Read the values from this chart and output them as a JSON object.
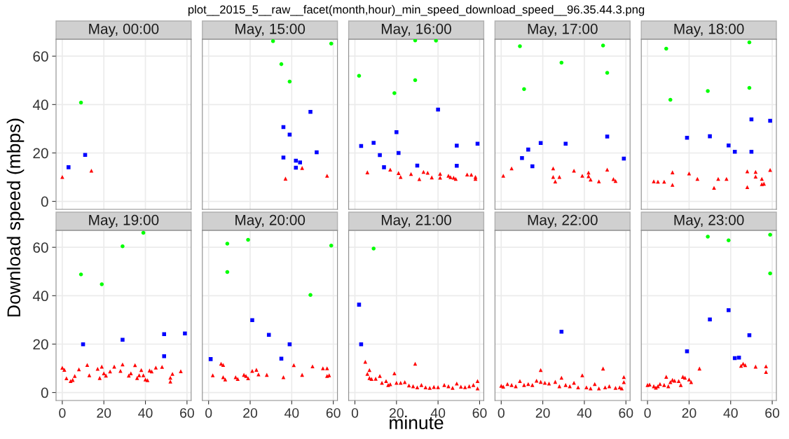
{
  "chart_data": [
    {
      "type": "scatter",
      "title": "May, 00:00",
      "annotations": [
        "plot__2015_5__raw__facet(month,hour)_min_speed_download_speed__96.35.44.3.png"
      ],
      "ylabel": "Download speed (mbps)",
      "xlim": [
        -3,
        62
      ],
      "ylim": [
        -3.3,
        67
      ],
      "xticks": [
        0,
        20,
        40,
        60
      ],
      "yticks": [
        0,
        20,
        40,
        60
      ],
      "grid": true,
      "tick_labels": "y",
      "series": [
        {
          "color": "#00ff00",
          "marker": "circle",
          "x": [
            9
          ],
          "values": [
            40.8
          ]
        },
        {
          "color": "#0000ff",
          "marker": "square",
          "x": [
            3,
            11
          ],
          "values": [
            14.1,
            19.2
          ]
        },
        {
          "color": "#ff0000",
          "marker": "triangle",
          "x": [
            0,
            14
          ],
          "values": [
            10.1,
            12.7
          ]
        }
      ]
    },
    {
      "type": "scatter",
      "title": "May, 15:00",
      "xlim": [
        -3,
        62
      ],
      "ylim": [
        -3.3,
        67
      ],
      "xticks": [
        0,
        20,
        40,
        60
      ],
      "yticks": [
        0,
        20,
        40,
        60
      ],
      "grid": true,
      "tick_labels": false,
      "series": [
        {
          "color": "#00ff00",
          "marker": "circle",
          "x": [
            31,
            59,
            35,
            39
          ],
          "values": [
            66.2,
            65.2,
            56.7,
            49.5
          ]
        },
        {
          "color": "#0000ff",
          "marker": "square",
          "x": [
            49,
            36,
            39,
            52,
            36,
            42,
            44,
            42
          ],
          "values": [
            37,
            30.7,
            27.6,
            20.3,
            18.1,
            16.8,
            16.1,
            13.9
          ]
        },
        {
          "color": "#ff0000",
          "marker": "triangle",
          "x": [
            45,
            37,
            57
          ],
          "values": [
            13.8,
            9.4,
            10.6
          ]
        }
      ]
    },
    {
      "type": "scatter",
      "title": "May, 16:00",
      "xlim": [
        -3,
        62
      ],
      "ylim": [
        -3.3,
        67
      ],
      "xticks": [
        0,
        20,
        40,
        60
      ],
      "yticks": [
        0,
        20,
        40,
        60
      ],
      "grid": true,
      "tick_labels": false,
      "series": [
        {
          "color": "#00ff00",
          "marker": "circle",
          "x": [
            2,
            29,
            39,
            29,
            19
          ],
          "values": [
            51.9,
            66.5,
            66.4,
            50.1,
            44.7
          ]
        },
        {
          "color": "#0000ff",
          "marker": "square",
          "x": [
            3,
            9,
            12,
            20,
            21,
            14,
            30,
            40,
            49,
            49,
            59
          ],
          "values": [
            22.9,
            24.2,
            19.1,
            28.6,
            20,
            14.1,
            14.8,
            37.9,
            23,
            14.7,
            23.8
          ]
        },
        {
          "color": "#ff0000",
          "marker": "triangle",
          "x": [
            6,
            17,
            21,
            22,
            27,
            31,
            33,
            35,
            37,
            41,
            41,
            45,
            46,
            47.5,
            48.5,
            54,
            56,
            58,
            58
          ],
          "values": [
            12,
            13.1,
            11.7,
            10.1,
            11.3,
            9.2,
            12.2,
            11.8,
            9.9,
            11.4,
            9.8,
            10.6,
            10,
            9.8,
            9.3,
            11.1,
            11,
            10.1,
            9.3
          ]
        }
      ]
    },
    {
      "type": "scatter",
      "title": "May, 17:00",
      "xlim": [
        -3,
        62
      ],
      "ylim": [
        -3.3,
        67
      ],
      "xticks": [
        0,
        20,
        40,
        60
      ],
      "yticks": [
        0,
        20,
        40,
        60
      ],
      "grid": true,
      "tick_labels": false,
      "series": [
        {
          "color": "#00ff00",
          "marker": "circle",
          "x": [
            9,
            49,
            29,
            51,
            11
          ],
          "values": [
            64.1,
            64.4,
            57.3,
            53.1,
            46.4
          ]
        },
        {
          "color": "#0000ff",
          "marker": "square",
          "x": [
            10,
            13,
            15,
            19,
            31,
            51,
            59
          ],
          "values": [
            17.9,
            21.4,
            14.5,
            24.1,
            23.8,
            26.8,
            17.7
          ]
        },
        {
          "color": "#ff0000",
          "marker": "triangle",
          "x": [
            1,
            5,
            25,
            25,
            26,
            28,
            35,
            39,
            42,
            42,
            43,
            47,
            51,
            54,
            55
          ],
          "values": [
            10.6,
            13.6,
            13.6,
            10.1,
            8.2,
            10.1,
            12.7,
            10.6,
            11.9,
            10.4,
            9,
            8.3,
            13.1,
            9.2,
            8.4
          ]
        }
      ]
    },
    {
      "type": "scatter",
      "title": "May, 18:00",
      "xlim": [
        -3,
        62
      ],
      "ylim": [
        -3.3,
        67
      ],
      "xticks": [
        0,
        20,
        40,
        60
      ],
      "yticks": [
        0,
        20,
        40,
        60
      ],
      "grid": true,
      "tick_labels": false,
      "series": [
        {
          "color": "#00ff00",
          "marker": "circle",
          "x": [
            9,
            49,
            11,
            29,
            49
          ],
          "values": [
            63.1,
            65.7,
            42,
            45.6,
            46.9
          ]
        },
        {
          "color": "#0000ff",
          "marker": "square",
          "x": [
            19,
            30,
            39,
            42,
            50,
            50,
            59
          ],
          "values": [
            26.3,
            26.9,
            23.1,
            20.5,
            33.9,
            20.5,
            33.3
          ]
        },
        {
          "color": "#ff0000",
          "marker": "triangle",
          "x": [
            3,
            5,
            8,
            12,
            12,
            20,
            24,
            32,
            34,
            38,
            48,
            48,
            52,
            52,
            55,
            55,
            56,
            59
          ],
          "values": [
            8.3,
            8.1,
            8.1,
            12,
            6.8,
            11.5,
            9.3,
            5.6,
            9.3,
            9.3,
            12.4,
            5.9,
            12.2,
            10.2,
            9.3,
            7.1,
            7.3,
            13
          ]
        }
      ]
    },
    {
      "type": "scatter",
      "title": "May, 19:00",
      "xlim": [
        -3,
        62
      ],
      "ylim": [
        -3.3,
        67
      ],
      "xticks": [
        0,
        20,
        40,
        60
      ],
      "yticks": [
        0,
        20,
        40,
        60
      ],
      "grid": true,
      "series": [
        {
          "color": "#00ff00",
          "marker": "circle",
          "x": [
            39,
            29,
            9,
            19
          ],
          "values": [
            66,
            60.4,
            48.8,
            44.7
          ]
        },
        {
          "color": "#0000ff",
          "marker": "square",
          "x": [
            10,
            29,
            49,
            49,
            59
          ],
          "values": [
            19.9,
            21.8,
            24.1,
            15,
            24.4
          ]
        },
        {
          "color": "#ff0000",
          "marker": "triangle",
          "x": [
            0,
            1,
            2,
            4,
            5,
            6,
            8,
            12,
            13,
            17,
            19,
            18,
            20,
            21,
            23,
            25,
            28,
            29,
            32,
            33,
            35,
            36,
            37,
            38,
            39,
            40,
            41,
            42,
            43,
            45,
            48,
            52,
            52,
            53,
            57
          ],
          "values": [
            10.2,
            9.4,
            5.9,
            4.7,
            5.2,
            6.8,
            9.6,
            11.4,
            7.1,
            9.8,
            10.7,
            6,
            7.9,
            7,
            8.7,
            10.7,
            8.9,
            11.6,
            7,
            7.9,
            11.3,
            6,
            7.1,
            9.3,
            7.1,
            5.4,
            5.1,
            9.1,
            8.7,
            10.3,
            10.6,
            6.1,
            4.5,
            7.7,
            8.8
          ]
        }
      ]
    },
    {
      "type": "scatter",
      "title": "May, 20:00",
      "xlim": [
        -3,
        62
      ],
      "ylim": [
        -3.3,
        67
      ],
      "xticks": [
        0,
        20,
        40,
        60
      ],
      "yticks": [
        0,
        20,
        40,
        60
      ],
      "grid": true,
      "tick_labels": "x",
      "series": [
        {
          "color": "#00ff00",
          "marker": "circle",
          "x": [
            9,
            9,
            19,
            49,
            59
          ],
          "values": [
            61.5,
            49.8,
            63.1,
            40.3,
            60.7
          ]
        },
        {
          "color": "#0000ff",
          "marker": "square",
          "x": [
            1,
            21,
            29,
            35,
            39
          ],
          "values": [
            13.8,
            29.9,
            23.8,
            14,
            19.9
          ]
        },
        {
          "color": "#ff0000",
          "marker": "triangle",
          "x": [
            2,
            6,
            7,
            7,
            8,
            13,
            14,
            17,
            18,
            19,
            21,
            23,
            24,
            28,
            36,
            41,
            45,
            50,
            55,
            57,
            57,
            58
          ],
          "values": [
            7.1,
            11.9,
            11.4,
            6.3,
            5.4,
            6.3,
            5.6,
            7.3,
            6.8,
            5.9,
            8.9,
            9.4,
            7.5,
            7.3,
            6.3,
            11.3,
            7.3,
            10.8,
            10,
            10,
            6.8,
            7.1
          ]
        }
      ]
    },
    {
      "type": "scatter",
      "title": "May, 21:00",
      "xlabel": "minute",
      "xlim": [
        -3,
        62
      ],
      "ylim": [
        -3.3,
        67
      ],
      "xticks": [
        0,
        20,
        40,
        60
      ],
      "yticks": [
        0,
        20,
        40,
        60
      ],
      "grid": true,
      "tick_labels": "x",
      "series": [
        {
          "color": "#00ff00",
          "marker": "circle",
          "x": [
            9
          ],
          "values": [
            59.5
          ]
        },
        {
          "color": "#0000ff",
          "marker": "square",
          "x": [
            2,
            3
          ],
          "values": [
            36.3,
            19.9
          ]
        },
        {
          "color": "#ff0000",
          "marker": "triangle",
          "x": [
            5,
            7,
            6,
            7,
            8,
            10,
            12,
            13,
            15,
            16,
            17,
            19,
            20,
            22,
            24,
            26,
            28,
            29,
            30,
            32,
            34,
            36,
            38,
            40,
            43,
            45,
            47,
            49,
            51,
            53,
            55,
            57,
            59,
            59
          ],
          "values": [
            12.7,
            9.3,
            7.7,
            6,
            5.6,
            5.7,
            6.8,
            4,
            4.7,
            3.1,
            3.4,
            7.9,
            4,
            4,
            4.3,
            2.9,
            2.6,
            11.9,
            2.1,
            3.1,
            2.1,
            1.9,
            2.3,
            2.2,
            3.1,
            2.6,
            1.9,
            3.7,
            2.4,
            2.2,
            2.6,
            3.1,
            1.7,
            4.7
          ]
        }
      ]
    },
    {
      "type": "scatter",
      "title": "May, 22:00",
      "xlim": [
        -3,
        62
      ],
      "ylim": [
        -3.3,
        67
      ],
      "xticks": [
        0,
        20,
        40,
        60
      ],
      "yticks": [
        0,
        20,
        40,
        60
      ],
      "grid": true,
      "tick_labels": "x",
      "series": [
        {
          "color": "#0000ff",
          "marker": "square",
          "x": [
            29
          ],
          "values": [
            25.1
          ]
        },
        {
          "color": "#ff0000",
          "marker": "triangle",
          "x": [
            0,
            1,
            3,
            5,
            7,
            9,
            11,
            13,
            15,
            17,
            19,
            19,
            21,
            23,
            26,
            28,
            29,
            31,
            33,
            35,
            37,
            39,
            41,
            43,
            45,
            47,
            49,
            50,
            52,
            55,
            57,
            58,
            59,
            59
          ],
          "values": [
            2.8,
            2.4,
            3.5,
            3.1,
            2.6,
            4.7,
            3.1,
            3.5,
            3.1,
            4.9,
            9.3,
            4.4,
            4,
            3.7,
            4.4,
            2.6,
            6.1,
            3.1,
            2.6,
            4,
            2.1,
            7.1,
            2.1,
            1.7,
            3.5,
            1.7,
            9.9,
            2.1,
            2.6,
            1.9,
            2.1,
            1.7,
            6.4,
            4.3
          ]
        }
      ]
    },
    {
      "type": "scatter",
      "title": "May, 23:00",
      "xlim": [
        -3,
        62
      ],
      "ylim": [
        -3.3,
        67
      ],
      "xticks": [
        0,
        20,
        40,
        60
      ],
      "yticks": [
        0,
        20,
        40,
        60
      ],
      "grid": true,
      "tick_labels": "x",
      "series": [
        {
          "color": "#00ff00",
          "marker": "circle",
          "x": [
            29,
            39,
            59,
            59
          ],
          "values": [
            64.4,
            62.9,
            65.2,
            49.2
          ]
        },
        {
          "color": "#0000ff",
          "marker": "square",
          "x": [
            19,
            30,
            39,
            49,
            42,
            44
          ],
          "values": [
            17,
            30.2,
            34,
            23.7,
            14.2,
            14.4
          ]
        },
        {
          "color": "#ff0000",
          "marker": "triangle",
          "x": [
            0,
            1,
            3,
            4,
            5,
            6,
            8,
            9,
            10,
            11,
            12,
            13,
            15,
            16,
            17,
            18,
            20,
            21,
            25,
            45,
            46,
            47,
            52,
            57,
            57
          ],
          "values": [
            3.1,
            3.3,
            2.6,
            2,
            2.6,
            3.5,
            3.1,
            6.5,
            2.6,
            4.3,
            5.2,
            4.9,
            4.7,
            3.1,
            6.5,
            6.1,
            5.4,
            4.3,
            9.9,
            11,
            11.9,
            11.3,
            10.7,
            10.8,
            8.5
          ]
        }
      ]
    }
  ]
}
